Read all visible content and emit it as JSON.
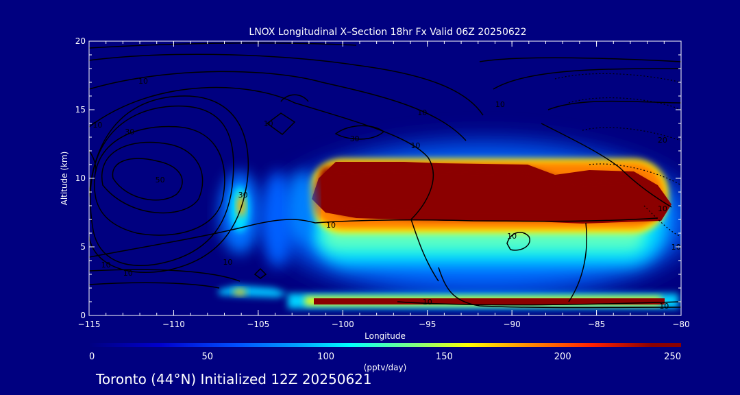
{
  "chart_data": {
    "type": "heatmap",
    "title": "LNOX Longitudinal X–Section 18hr  Fx Valid 06Z 20250622",
    "xlabel": "Longitude",
    "ylabel": "Altitude (km)",
    "xlim": [
      -115,
      -80
    ],
    "ylim": [
      0,
      20
    ],
    "x_ticks": [
      -115,
      -110,
      -105,
      -100,
      -95,
      -90,
      -85,
      -80
    ],
    "x_tick_labels": [
      "−115",
      "−110",
      "−105",
      "−100",
      "−95",
      "−90",
      "−85",
      "−80"
    ],
    "y_ticks": [
      0,
      5,
      10,
      15,
      20
    ],
    "y_tick_labels": [
      "0",
      "5",
      "10",
      "15",
      "20"
    ],
    "colorbar": {
      "label": "(pptv/day)",
      "range": [
        0,
        250
      ],
      "ticks": [
        0,
        50,
        100,
        150,
        200,
        250
      ],
      "tick_labels": [
        "0",
        "50",
        "100",
        "150",
        "200",
        "250"
      ],
      "colors": [
        "#000080",
        "#0000cd",
        "#0050ff",
        "#00a0ff",
        "#00ffff",
        "#80ff80",
        "#ffff00",
        "#ff9000",
        "#ff2000",
        "#8b0000"
      ]
    },
    "contour_labels": [
      {
        "text": "10",
        "x": -111.8,
        "y": 17.1
      },
      {
        "text": "10",
        "x": -114.5,
        "y": 13.9
      },
      {
        "text": "30",
        "x": -112.6,
        "y": 13.4
      },
      {
        "text": "50",
        "x": -110.8,
        "y": 9.9
      },
      {
        "text": "30",
        "x": -105.9,
        "y": 8.8
      },
      {
        "text": "10",
        "x": -104.4,
        "y": 14.0
      },
      {
        "text": "30",
        "x": -99.3,
        "y": 12.9
      },
      {
        "text": "10",
        "x": -95.3,
        "y": 14.8
      },
      {
        "text": "10",
        "x": -95.7,
        "y": 12.4
      },
      {
        "text": "10",
        "x": -90.7,
        "y": 15.4
      },
      {
        "text": "20",
        "x": -81.1,
        "y": 12.8
      },
      {
        "text": "10",
        "x": -100.7,
        "y": 6.6
      },
      {
        "text": "10",
        "x": -90.0,
        "y": 5.8
      },
      {
        "text": "10",
        "x": -81.1,
        "y": 7.8
      },
      {
        "text": "10",
        "x": -80.3,
        "y": 5.0
      },
      {
        "text": "10",
        "x": -106.8,
        "y": 3.9
      },
      {
        "text": "10",
        "x": -114.0,
        "y": 3.7
      },
      {
        "text": "10",
        "x": -112.7,
        "y": 3.1
      },
      {
        "text": "10",
        "x": -95.0,
        "y": 1.0
      },
      {
        "text": "10",
        "x": -81.0,
        "y": 0.7
      }
    ]
  },
  "footer_text": "Toronto (44°N) Initialized 12Z 20250621"
}
